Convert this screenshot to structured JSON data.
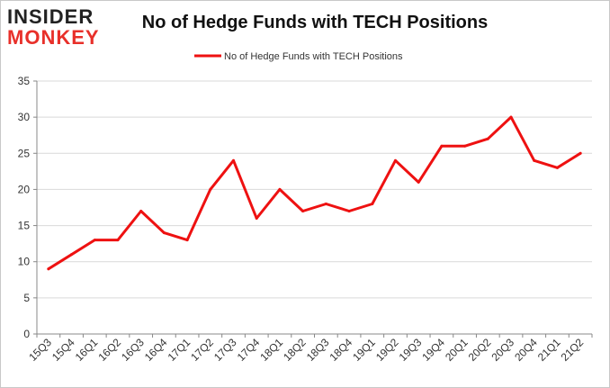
{
  "logo": {
    "line1": "INSIDER",
    "line2": "MONKEY"
  },
  "colors": {
    "series": "#ee1111",
    "grid": "#d9d9d9",
    "axis": "#888888",
    "logo_accent": "#e8302a"
  },
  "chart_data": {
    "type": "line",
    "title": "No of Hedge Funds with TECH Positions",
    "xlabel": "",
    "ylabel": "",
    "ylim": [
      0,
      35
    ],
    "yticks": [
      0,
      5,
      10,
      15,
      20,
      25,
      30,
      35
    ],
    "grid": true,
    "legend_position": "top-center",
    "categories": [
      "15Q3",
      "15Q4",
      "16Q1",
      "16Q2",
      "16Q3",
      "16Q4",
      "17Q1",
      "17Q2",
      "17Q3",
      "17Q4",
      "18Q1",
      "18Q2",
      "18Q3",
      "18Q4",
      "19Q1",
      "19Q2",
      "19Q3",
      "19Q4",
      "20Q1",
      "20Q2",
      "20Q3",
      "20Q4",
      "21Q1",
      "21Q2"
    ],
    "series": [
      {
        "name": "No of Hedge Funds with TECH Positions",
        "values": [
          9,
          11,
          13,
          13,
          17,
          14,
          13,
          20,
          24,
          16,
          20,
          17,
          18,
          17,
          18,
          24,
          21,
          26,
          26,
          27,
          30,
          24,
          23,
          25
        ]
      }
    ]
  }
}
